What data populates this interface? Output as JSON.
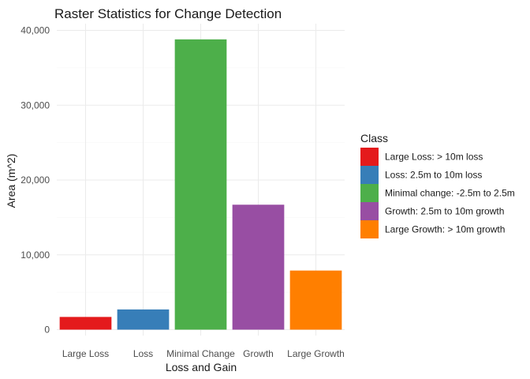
{
  "chart_data": {
    "type": "bar",
    "title": "Raster Statistics for Change Detection",
    "xlabel": "Loss and Gain",
    "ylabel": "Area (m^2)",
    "categories": [
      "Large Loss",
      "Loss",
      "Minimal Change",
      "Growth",
      "Large Growth"
    ],
    "values": [
      1700,
      2700,
      38800,
      16700,
      7900
    ],
    "colors": [
      "#E41A1C",
      "#377EB8",
      "#4DAF4A",
      "#984EA3",
      "#FF7F00"
    ],
    "ylim": [
      0,
      40000
    ],
    "yticks": [
      0,
      10000,
      20000,
      30000,
      40000
    ],
    "ytick_labels": [
      "0",
      "10,000",
      "20,000",
      "30,000",
      "40,000"
    ],
    "grid": true,
    "legend": {
      "title": "Class",
      "position": "right",
      "entries": [
        "Large Loss: > 10m loss",
        "Loss: 2.5m to 10m loss",
        "Minimal change: -2.5m to 2.5m",
        "Growth: 2.5m to 10m growth",
        "Large Growth: > 10m growth"
      ]
    }
  }
}
